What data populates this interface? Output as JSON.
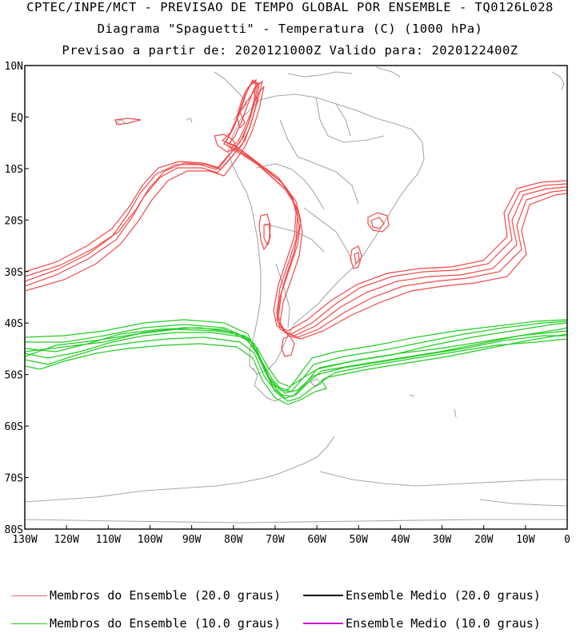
{
  "header": {
    "line1": "CPTEC/INPE/MCT - PREVISAO DE TEMPO GLOBAL POR ENSEMBLE - TQ0126L028",
    "line2": "Diagrama \"Spaguetti\" - Temperatura (C) (1000 hPa)",
    "line3": "Previsao a partir de: 2020121000Z  Valido para: 2020122400Z"
  },
  "map": {
    "lat_labels": [
      "10N",
      "EQ",
      "10S",
      "20S",
      "30S",
      "40S",
      "50S",
      "60S",
      "70S",
      "80S"
    ],
    "lat_values": [
      10,
      0,
      -10,
      -20,
      -30,
      -40,
      -50,
      -60,
      -70,
      -80
    ],
    "lon_labels": [
      "130W",
      "120W",
      "110W",
      "100W",
      "90W",
      "80W",
      "70W",
      "60W",
      "50W",
      "40W",
      "30W",
      "20W",
      "10W",
      "0"
    ],
    "lon_values": [
      -130,
      -120,
      -110,
      -100,
      -90,
      -80,
      -70,
      -60,
      -50,
      -40,
      -30,
      -20,
      -10,
      0
    ],
    "extent": {
      "lon": [
        -130,
        0
      ],
      "lat": [
        -80,
        10
      ]
    },
    "colors": {
      "member20": "#f24a4a",
      "member10": "#22cc22",
      "mean20": "#000000",
      "mean10": "#cc00cc",
      "coast": "#a8a8a8"
    }
  },
  "legend": [
    {
      "label": "Membros do Ensemble (20.0 graus)",
      "color": "#f26b6b"
    },
    {
      "label": "Ensemble Medio (20.0 graus)",
      "color": "#000000"
    },
    {
      "label": "Membros do Ensemble (10.0 graus)",
      "color": "#22cc22"
    },
    {
      "label": "Ensemble Medio (10.0 graus)",
      "color": "#cc00cc"
    }
  ]
}
